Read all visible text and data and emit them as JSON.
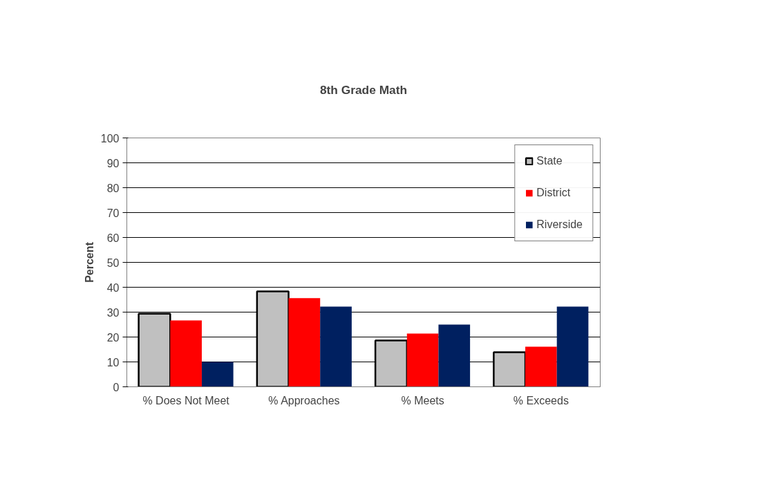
{
  "chart_data": {
    "type": "bar",
    "title": "8th Grade Math",
    "ylabel": "Percent",
    "categories": [
      "% Does Not Meet",
      "% Approaches",
      "% Meets",
      "% Exceeds"
    ],
    "series": [
      {
        "name": "State",
        "color": "#c0c0c0",
        "values": [
          29.4,
          38.3,
          18.6,
          13.9
        ]
      },
      {
        "name": "District",
        "color": "#ff0000",
        "values": [
          26.7,
          35.6,
          21.4,
          16.1
        ]
      },
      {
        "name": "Riverside",
        "color": "#002060",
        "values": [
          10,
          32.2,
          25,
          32.2
        ]
      }
    ],
    "ylim": [
      0,
      100
    ],
    "yticks": [
      0,
      10,
      20,
      30,
      40,
      50,
      60,
      70,
      80,
      90,
      100
    ],
    "grid": "y",
    "legend": "top right"
  }
}
